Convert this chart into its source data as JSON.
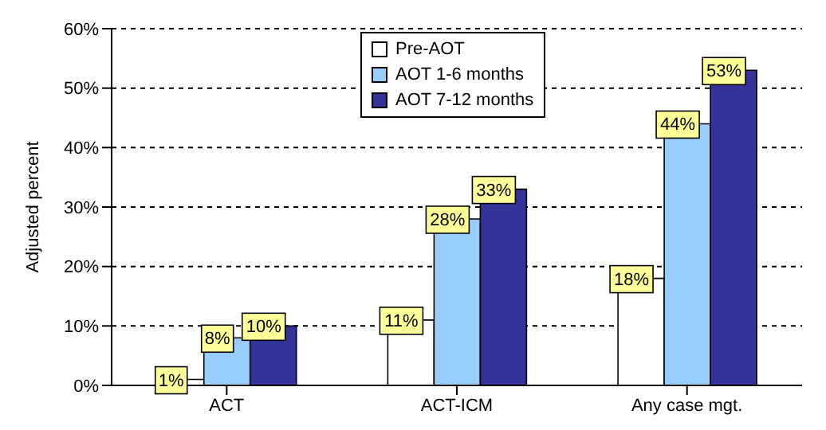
{
  "chart_data": {
    "type": "bar",
    "ylabel": "Adjusted percent",
    "categories": [
      "ACT",
      "ACT-ICM",
      "Any case mgt."
    ],
    "series": [
      {
        "name": "Pre-AOT",
        "color": "#ffffff",
        "values": [
          1,
          11,
          18
        ],
        "value_labels": [
          "1%",
          "11%",
          "18%"
        ]
      },
      {
        "name": "AOT 1-6 months",
        "color": "#99ccff",
        "values": [
          8,
          28,
          44
        ],
        "value_labels": [
          "8%",
          "28%",
          "44%"
        ]
      },
      {
        "name": "AOT 7-12 months",
        "color": "#333399",
        "values": [
          10,
          33,
          53
        ],
        "value_labels": [
          "10%",
          "33%",
          "53%"
        ]
      }
    ],
    "ylim": [
      0,
      60
    ],
    "yticks": [
      {
        "value": 0,
        "label": "0%"
      },
      {
        "value": 10,
        "label": "10%"
      },
      {
        "value": 20,
        "label": "20%"
      },
      {
        "value": 30,
        "label": "30%"
      },
      {
        "value": 40,
        "label": "40%"
      },
      {
        "value": 50,
        "label": "50%"
      },
      {
        "value": 60,
        "label": "60%"
      }
    ],
    "grid": "y",
    "legend": "top"
  }
}
